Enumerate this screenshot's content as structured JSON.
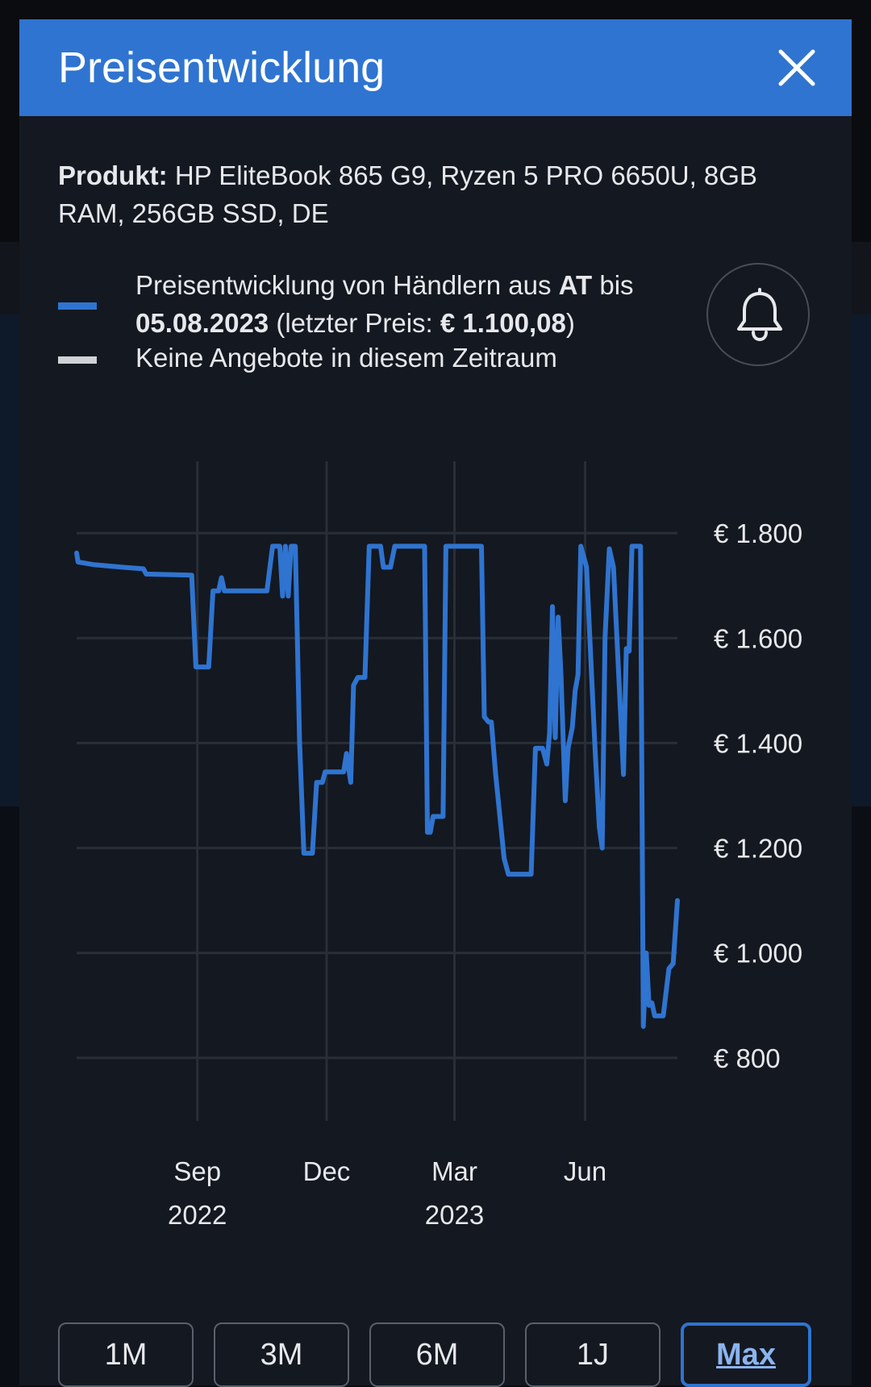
{
  "dialog": {
    "title": "Preisentwicklung",
    "close_icon": "close-icon"
  },
  "product": {
    "label": "Produkt:",
    "name": "HP EliteBook 865 G9, Ryzen 5 PRO 6650U, 8GB RAM, 256GB SSD, DE"
  },
  "legend": {
    "line1_pre": "Preisentwicklung von Händlern aus",
    "country": "AT",
    "line1_post": "bis",
    "date": "05.08.2023",
    "last_price_pre": "(letzter Preis:",
    "last_price": "€ 1.100,08",
    "last_price_post": ")",
    "no_offers": "Keine Angebote in diesem Zeitraum",
    "line_color": "#2f74d0",
    "no_offer_color": "#cfd2d6"
  },
  "bell": {
    "icon": "bell-icon"
  },
  "range_buttons": [
    {
      "label": "1M",
      "active": false
    },
    {
      "label": "3M",
      "active": false
    },
    {
      "label": "6M",
      "active": false
    },
    {
      "label": "1J",
      "active": false
    },
    {
      "label": "Max",
      "active": true
    }
  ],
  "chart_data": {
    "type": "line",
    "x_type": "date",
    "xlim": [
      "2022-06-08",
      "2023-08-05"
    ],
    "ylim": [
      680,
      1940
    ],
    "y_ticks": [
      800,
      1000,
      1200,
      1400,
      1600,
      1800
    ],
    "y_tick_labels": [
      "€ 800",
      "€ 1.000",
      "€ 1.200",
      "€ 1.400",
      "€ 1.600",
      "€ 1.800"
    ],
    "x_ticks": [
      "2022-09-01",
      "2022-12-01",
      "2023-03-01",
      "2023-06-01"
    ],
    "x_tick_labels": [
      [
        "Sep",
        "2022"
      ],
      [
        "Dec",
        ""
      ],
      [
        "Mar",
        "2023"
      ],
      [
        "Jun",
        ""
      ]
    ],
    "grid": true,
    "series": [
      {
        "color": "#2f74d0",
        "points": [
          [
            "2022-06-08",
            1762
          ],
          [
            "2022-06-09",
            1745
          ],
          [
            "2022-06-20",
            1740
          ],
          [
            "2022-07-10",
            1735
          ],
          [
            "2022-07-25",
            1732
          ],
          [
            "2022-07-27",
            1722
          ],
          [
            "2022-08-28",
            1720
          ],
          [
            "2022-08-31",
            1545
          ],
          [
            "2022-09-09",
            1545
          ],
          [
            "2022-09-12",
            1690
          ],
          [
            "2022-09-16",
            1690
          ],
          [
            "2022-09-18",
            1715
          ],
          [
            "2022-09-20",
            1690
          ],
          [
            "2022-10-20",
            1690
          ],
          [
            "2022-10-24",
            1775
          ],
          [
            "2022-10-29",
            1775
          ],
          [
            "2022-10-31",
            1680
          ],
          [
            "2022-11-02",
            1775
          ],
          [
            "2022-11-04",
            1680
          ],
          [
            "2022-11-06",
            1775
          ],
          [
            "2022-11-09",
            1775
          ],
          [
            "2022-11-12",
            1400
          ],
          [
            "2022-11-15",
            1190
          ],
          [
            "2022-11-21",
            1190
          ],
          [
            "2022-11-24",
            1325
          ],
          [
            "2022-11-28",
            1325
          ],
          [
            "2022-11-30",
            1345
          ],
          [
            "2022-12-02",
            1345
          ],
          [
            "2022-12-13",
            1345
          ],
          [
            "2022-12-15",
            1380
          ],
          [
            "2022-12-18",
            1325
          ],
          [
            "2022-12-20",
            1510
          ],
          [
            "2022-12-23",
            1525
          ],
          [
            "2022-12-28",
            1525
          ],
          [
            "2022-12-31",
            1775
          ],
          [
            "2023-01-08",
            1775
          ],
          [
            "2023-01-10",
            1735
          ],
          [
            "2023-01-15",
            1735
          ],
          [
            "2023-01-18",
            1775
          ],
          [
            "2023-02-08",
            1775
          ],
          [
            "2023-02-10",
            1230
          ],
          [
            "2023-02-12",
            1230
          ],
          [
            "2023-02-14",
            1260
          ],
          [
            "2023-02-21",
            1260
          ],
          [
            "2023-02-23",
            1775
          ],
          [
            "2023-03-20",
            1775
          ],
          [
            "2023-03-22",
            1450
          ],
          [
            "2023-03-25",
            1440
          ],
          [
            "2023-03-27",
            1440
          ],
          [
            "2023-03-30",
            1340
          ],
          [
            "2023-04-05",
            1180
          ],
          [
            "2023-04-08",
            1150
          ],
          [
            "2023-04-24",
            1150
          ],
          [
            "2023-04-27",
            1390
          ],
          [
            "2023-05-02",
            1390
          ],
          [
            "2023-05-05",
            1360
          ],
          [
            "2023-05-07",
            1420
          ],
          [
            "2023-05-09",
            1660
          ],
          [
            "2023-05-11",
            1410
          ],
          [
            "2023-05-13",
            1640
          ],
          [
            "2023-05-15",
            1530
          ],
          [
            "2023-05-18",
            1290
          ],
          [
            "2023-05-20",
            1390
          ],
          [
            "2023-05-23",
            1430
          ],
          [
            "2023-05-25",
            1500
          ],
          [
            "2023-05-27",
            1530
          ],
          [
            "2023-05-29",
            1775
          ],
          [
            "2023-06-02",
            1735
          ],
          [
            "2023-06-05",
            1560
          ],
          [
            "2023-06-08",
            1390
          ],
          [
            "2023-06-11",
            1240
          ],
          [
            "2023-06-13",
            1200
          ],
          [
            "2023-06-15",
            1600
          ],
          [
            "2023-06-18",
            1770
          ],
          [
            "2023-06-21",
            1735
          ],
          [
            "2023-06-25",
            1510
          ],
          [
            "2023-06-28",
            1340
          ],
          [
            "2023-06-30",
            1580
          ],
          [
            "2023-07-02",
            1575
          ],
          [
            "2023-07-04",
            1775
          ],
          [
            "2023-07-10",
            1775
          ],
          [
            "2023-07-12",
            860
          ],
          [
            "2023-07-14",
            1000
          ],
          [
            "2023-07-16",
            900
          ],
          [
            "2023-07-18",
            905
          ],
          [
            "2023-07-20",
            880
          ],
          [
            "2023-07-26",
            880
          ],
          [
            "2023-07-30",
            970
          ],
          [
            "2023-08-02",
            980
          ],
          [
            "2023-08-05",
            1100
          ]
        ]
      }
    ]
  }
}
